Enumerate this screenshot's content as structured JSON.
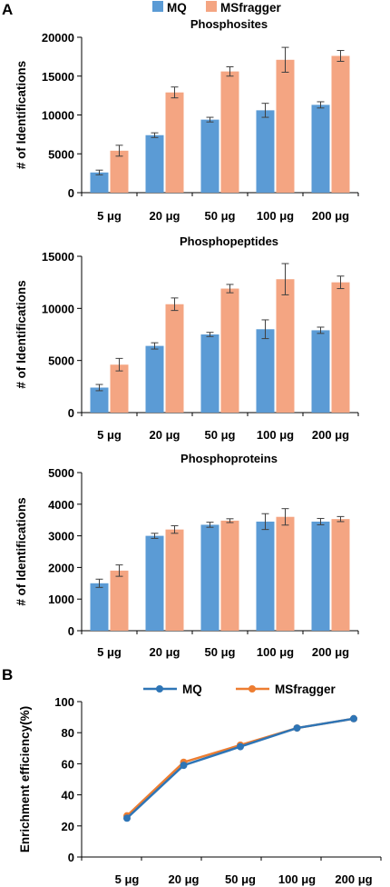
{
  "panel_labels": {
    "a": "A",
    "b": "B"
  },
  "colors": {
    "mq": "#5b9bd5",
    "msfragger": "#f4a582",
    "mq_line": "#2e75b6",
    "msfragger_line": "#ed7d31",
    "axis": "#000000",
    "error": "#404040"
  },
  "legend": {
    "mq": "MQ",
    "msfragger": "MSfragger"
  },
  "chart_data": [
    {
      "type": "bar",
      "title": "Phosphosites",
      "ylabel": "# of Identifications",
      "ylim": [
        0,
        20000
      ],
      "yticks": [
        "0",
        "5000",
        "10000",
        "15000",
        "20000"
      ],
      "categories": [
        "5 μg",
        "20 μg",
        "50 μg",
        "100 μg",
        "200 μg"
      ],
      "series": [
        {
          "name": "MQ",
          "values": [
            2600,
            7400,
            9400,
            10600,
            11300
          ],
          "errors": [
            300,
            300,
            300,
            900,
            400
          ]
        },
        {
          "name": "MSfragger",
          "values": [
            5400,
            12900,
            15600,
            17100,
            17600
          ],
          "errors": [
            700,
            700,
            600,
            1600,
            700
          ]
        }
      ]
    },
    {
      "type": "bar",
      "title": "Phosphopeptides",
      "ylabel": "# of Identifications",
      "ylim": [
        0,
        15000
      ],
      "yticks": [
        "0",
        "5000",
        "10000",
        "15000"
      ],
      "categories": [
        "5 μg",
        "20 μg",
        "50 μg",
        "100 μg",
        "200 μg"
      ],
      "series": [
        {
          "name": "MQ",
          "values": [
            2400,
            6400,
            7500,
            8000,
            7900
          ],
          "errors": [
            300,
            300,
            200,
            900,
            300
          ]
        },
        {
          "name": "MSfragger",
          "values": [
            4600,
            10400,
            11900,
            12800,
            12500
          ],
          "errors": [
            600,
            600,
            400,
            1500,
            600
          ]
        }
      ]
    },
    {
      "type": "bar",
      "title": "Phosphoproteins",
      "ylabel": "# of Identifications",
      "ylim": [
        0,
        5000
      ],
      "yticks": [
        "0",
        "1000",
        "2000",
        "3000",
        "4000",
        "5000"
      ],
      "categories": [
        "5 μg",
        "20 μg",
        "50 μg",
        "100 μg",
        "200 μg"
      ],
      "series": [
        {
          "name": "MQ",
          "values": [
            1500,
            3000,
            3350,
            3450,
            3450
          ],
          "errors": [
            130,
            80,
            80,
            250,
            100
          ]
        },
        {
          "name": "MSfragger",
          "values": [
            1900,
            3200,
            3480,
            3600,
            3530
          ],
          "errors": [
            180,
            120,
            60,
            260,
            80
          ]
        }
      ]
    },
    {
      "type": "line",
      "title": "",
      "ylabel": "Enrichment efficiency(%)",
      "ylim": [
        0,
        100
      ],
      "yticks": [
        "0",
        "20",
        "40",
        "60",
        "80",
        "100"
      ],
      "categories": [
        "5 μg",
        "20 μg",
        "50 μg",
        "100 μg",
        "200 μg"
      ],
      "series": [
        {
          "name": "MQ",
          "values": [
            25,
            59,
            71,
            83,
            89
          ]
        },
        {
          "name": "MSfragger",
          "values": [
            26.5,
            61,
            72,
            83,
            89
          ]
        }
      ]
    }
  ]
}
